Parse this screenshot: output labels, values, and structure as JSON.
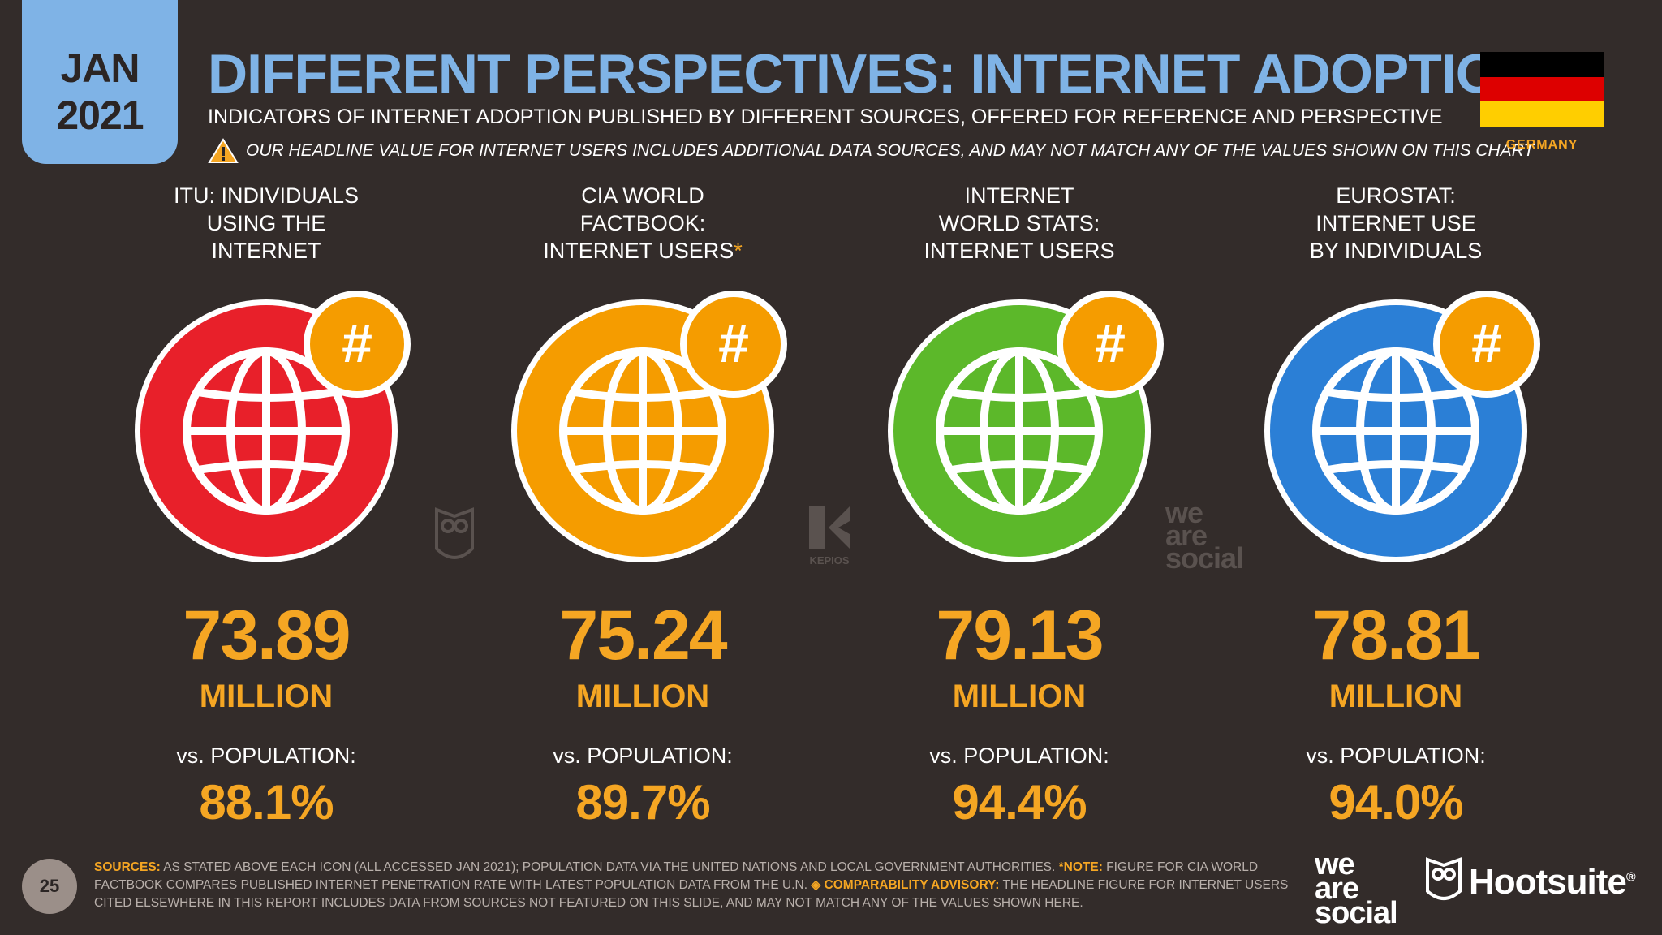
{
  "date": {
    "month": "JAN",
    "year": "2021"
  },
  "title": "DIFFERENT PERSPECTIVES: INTERNET ADOPTION",
  "subtitle": "INDICATORS OF INTERNET ADOPTION PUBLISHED BY DIFFERENT SOURCES, OFFERED FOR REFERENCE AND PERSPECTIVE",
  "warning": "OUR HEADLINE VALUE FOR INTERNET USERS INCLUDES ADDITIONAL DATA SOURCES, AND MAY NOT MATCH ANY OF THE VALUES SHOWN ON THIS CHART",
  "country": "GERMANY",
  "flag_colors": [
    "#000000",
    "#dd0000",
    "#ffce00"
  ],
  "hash_symbol": "#",
  "columns": [
    {
      "label_lines": [
        "ITU: INDIVIDUALS",
        "USING THE",
        "INTERNET"
      ],
      "value": "73.89",
      "unit": "MILLION",
      "vs": "vs. POPULATION:",
      "pct": "88.1%",
      "color": "#e8202a",
      "icon": "globe-icon"
    },
    {
      "label_lines": [
        "CIA WORLD",
        "FACTBOOK:",
        "INTERNET USERS"
      ],
      "asterisk": "*",
      "value": "75.24",
      "unit": "MILLION",
      "vs": "vs. POPULATION:",
      "pct": "89.7%",
      "color": "#f59c00",
      "icon": "globe-icon"
    },
    {
      "label_lines": [
        "INTERNET",
        "WORLD STATS:",
        "INTERNET USERS"
      ],
      "value": "79.13",
      "unit": "MILLION",
      "vs": "vs. POPULATION:",
      "pct": "94.4%",
      "color": "#5cb82a",
      "icon": "globe-icon"
    },
    {
      "label_lines": [
        "EUROSTAT:",
        "INTERNET USE",
        "BY INDIVIDUALS"
      ],
      "value": "78.81",
      "unit": "MILLION",
      "vs": "vs. POPULATION:",
      "pct": "94.0%",
      "color": "#2b7fd6",
      "icon": "globe-icon"
    }
  ],
  "watermarks": {
    "kepios": "KEPIOS",
    "was": [
      "we",
      "are",
      "social"
    ]
  },
  "footer": {
    "page_number": "25",
    "sources_label": "SOURCES:",
    "sources_text": " AS STATED ABOVE EACH ICON (ALL ACCESSED JAN 2021); POPULATION DATA VIA THE UNITED NATIONS AND LOCAL GOVERNMENT AUTHORITIES. ",
    "note_label": "*NOTE:",
    "note_text": " FIGURE FOR CIA WORLD FACTBOOK COMPARES PUBLISHED INTERNET PENETRATION RATE WITH LATEST POPULATION DATA FROM THE U.N. ",
    "advisory_label": "◈ COMPARABILITY ADVISORY:",
    "advisory_text": " THE HEADLINE FIGURE FOR INTERNET USERS CITED ELSEWHERE IN THIS REPORT INCLUDES DATA FROM SOURCES NOT FEATURED ON THIS SLIDE, AND MAY NOT MATCH ANY OF THE VALUES SHOWN HERE."
  },
  "logos": {
    "was": [
      "we",
      "are",
      "social"
    ],
    "hootsuite": "Hootsuite",
    "registered": "®"
  }
}
